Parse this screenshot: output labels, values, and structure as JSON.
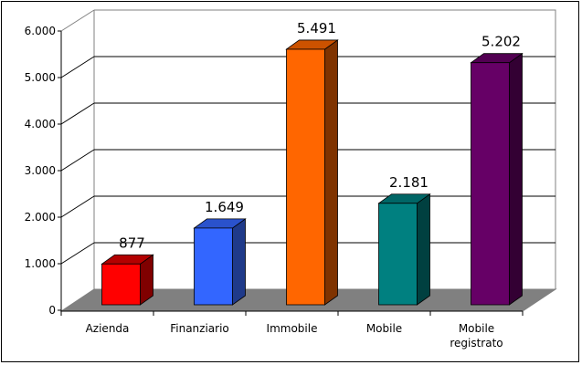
{
  "chart_data": {
    "type": "bar",
    "style": "3d-column",
    "title": "",
    "xlabel": "",
    "ylabel": "",
    "categories": [
      "Azienda",
      "Finanziario",
      "Immobile",
      "Mobile",
      "Mobile registrato"
    ],
    "category_label_lines": [
      [
        "Azienda"
      ],
      [
        "Finanziario"
      ],
      [
        "Immobile"
      ],
      [
        "Mobile"
      ],
      [
        "Mobile",
        "registrato"
      ]
    ],
    "values": [
      877,
      1649,
      5491,
      2181,
      5202
    ],
    "value_labels": [
      "877",
      "1.649",
      "5.491",
      "2.181",
      "5.202"
    ],
    "colors": [
      {
        "front": "#ff0000",
        "side": "#800000",
        "top": "#b30000"
      },
      {
        "front": "#3366ff",
        "side": "#1f3a8a",
        "top": "#2a52cc"
      },
      {
        "front": "#ff6600",
        "side": "#7f3300",
        "top": "#cc5200"
      },
      {
        "front": "#008080",
        "side": "#004040",
        "top": "#006666"
      },
      {
        "front": "#660066",
        "side": "#330033",
        "top": "#520052"
      }
    ],
    "ylim": [
      0,
      6000
    ],
    "yticks": [
      0,
      1000,
      2000,
      3000,
      4000,
      5000,
      6000
    ],
    "ytick_labels": [
      "0",
      "1.000",
      "2.000",
      "3.000",
      "4.000",
      "5.000",
      "6.000"
    ],
    "grid": true,
    "legend": "none",
    "floor_color": "#808080"
  }
}
